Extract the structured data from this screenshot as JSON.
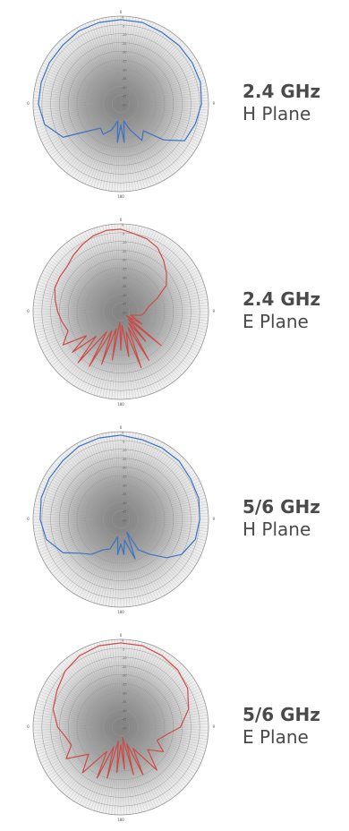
{
  "chart_data": [
    {
      "type": "polar",
      "title": "2.4 GHz",
      "subtitle": "H Plane",
      "color": "#3b73c4",
      "angle_labels": [
        "0",
        "90",
        "180",
        "270"
      ],
      "radial_ticks": [
        "0",
        "-5",
        "-10",
        "-15",
        "-20",
        "-25",
        "-30",
        "-35",
        "-40",
        "-45",
        "-50"
      ],
      "rlim": [
        -50,
        0
      ],
      "series": [
        {
          "angles": [
            0,
            15,
            30,
            45,
            60,
            75,
            90,
            105,
            120,
            130,
            140,
            150,
            160,
            170,
            175,
            180,
            185,
            190,
            200,
            210,
            220,
            230,
            240,
            255,
            270,
            285,
            300,
            315,
            330,
            345,
            360
          ],
          "values": [
            -2,
            -2,
            -3,
            -3,
            -3,
            -3,
            -4,
            -6,
            -8,
            -18,
            -30,
            -26,
            -34,
            -40,
            -28,
            -38,
            -28,
            -40,
            -34,
            -30,
            -32,
            -26,
            -12,
            -5,
            -3,
            -3,
            -3,
            -3,
            -2,
            -2,
            -2
          ]
        }
      ]
    },
    {
      "type": "polar",
      "title": "2.4 GHz",
      "subtitle": "E Plane",
      "color": "#cf4a45",
      "angle_labels": [
        "0",
        "90",
        "180",
        "270"
      ],
      "radial_ticks": [
        "0",
        "-5",
        "-10",
        "-15",
        "-20",
        "-25",
        "-30",
        "-35",
        "-40",
        "-45",
        "-50"
      ],
      "rlim": [
        -50,
        0
      ],
      "series": [
        {
          "angles": [
            0,
            10,
            20,
            30,
            40,
            50,
            60,
            70,
            80,
            90,
            100,
            110,
            120,
            125,
            130,
            135,
            140,
            145,
            150,
            155,
            160,
            165,
            170,
            175,
            180,
            185,
            190,
            195,
            200,
            205,
            210,
            215,
            220,
            225,
            230,
            235,
            240,
            250,
            260,
            270,
            280,
            290,
            300,
            310,
            320,
            330,
            340,
            350,
            360
          ],
          "values": [
            -3,
            -5,
            -6,
            -8,
            -12,
            -16,
            -20,
            -28,
            -34,
            -36,
            -38,
            -44,
            -36,
            -46,
            -20,
            -44,
            -28,
            -42,
            -18,
            -40,
            -16,
            -38,
            -24,
            -42,
            -28,
            -44,
            -22,
            -40,
            -18,
            -38,
            -14,
            -36,
            -12,
            -30,
            -14,
            -26,
            -12,
            -18,
            -16,
            -14,
            -12,
            -10,
            -10,
            -10,
            -8,
            -6,
            -4,
            -3,
            -3
          ]
        }
      ]
    },
    {
      "type": "polar",
      "title": "5/6 GHz",
      "subtitle": "H Plane",
      "color": "#3b73c4",
      "angle_labels": [
        "0",
        "90",
        "180",
        "270"
      ],
      "radial_ticks": [
        "0",
        "-5",
        "-10",
        "-15",
        "-20",
        "-25",
        "-30",
        "-35",
        "-40",
        "-45",
        "-50"
      ],
      "rlim": [
        -50,
        0
      ],
      "series": [
        {
          "angles": [
            0,
            15,
            30,
            45,
            60,
            75,
            90,
            105,
            120,
            130,
            140,
            150,
            155,
            160,
            170,
            175,
            180,
            185,
            190,
            200,
            210,
            220,
            230,
            240,
            255,
            270,
            285,
            300,
            315,
            330,
            345,
            360
          ],
          "values": [
            -2,
            -3,
            -3,
            -3,
            -4,
            -4,
            -5,
            -6,
            -10,
            -16,
            -24,
            -30,
            -42,
            -26,
            -38,
            -30,
            -36,
            -30,
            -40,
            -32,
            -30,
            -24,
            -20,
            -12,
            -6,
            -4,
            -3,
            -3,
            -3,
            -2,
            -2,
            -2
          ]
        }
      ]
    },
    {
      "type": "polar",
      "title": "5/6 GHz",
      "subtitle": "E Plane",
      "color": "#cf4a45",
      "angle_labels": [
        "0",
        "90",
        "180",
        "270"
      ],
      "radial_ticks": [
        "0",
        "-5",
        "-10",
        "-15",
        "-20",
        "-25",
        "-30",
        "-35",
        "-40",
        "-45",
        "-50"
      ],
      "rlim": [
        -50,
        0
      ],
      "series": [
        {
          "angles": [
            0,
            15,
            30,
            45,
            60,
            75,
            90,
            100,
            110,
            120,
            130,
            140,
            150,
            155,
            160,
            165,
            170,
            175,
            180,
            185,
            190,
            195,
            200,
            205,
            210,
            220,
            230,
            240,
            250,
            260,
            270,
            285,
            300,
            315,
            330,
            345,
            360
          ],
          "values": [
            -2,
            -2,
            -3,
            -4,
            -6,
            -10,
            -16,
            -24,
            -28,
            -22,
            -30,
            -18,
            -36,
            -20,
            -40,
            -22,
            -44,
            -26,
            -40,
            -24,
            -42,
            -20,
            -38,
            -18,
            -34,
            -16,
            -26,
            -14,
            -20,
            -18,
            -14,
            -10,
            -8,
            -5,
            -3,
            -2,
            -2
          ]
        }
      ]
    }
  ]
}
